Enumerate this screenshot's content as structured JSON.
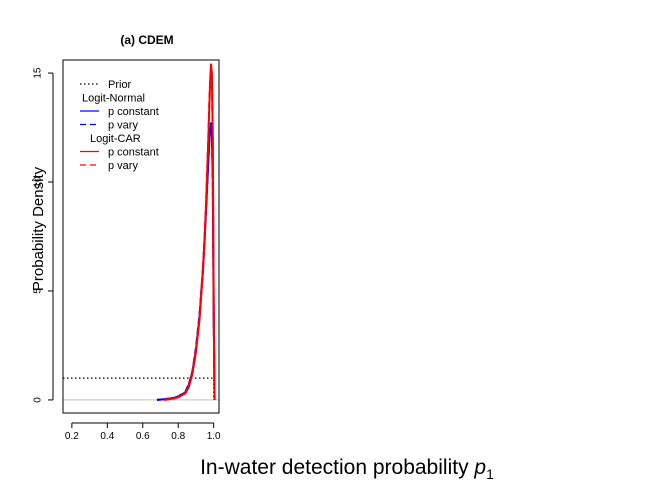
{
  "chart_data": {
    "type": "line",
    "title": "(a) CDEM",
    "xlabel_main": "In-water detection probability ",
    "xlabel_var": "p",
    "xlabel_sub": "1",
    "ylabel": "Probability Density",
    "xlim": [
      0.15,
      1.03
    ],
    "ylim": [
      -0.6,
      15.6
    ],
    "xticks": [
      0.2,
      0.4,
      0.6,
      0.8,
      1.0
    ],
    "xtick_labels": [
      "0.2",
      "0.4",
      "0.6",
      "0.8",
      "1.0"
    ],
    "yticks": [
      0,
      5,
      10,
      15
    ],
    "ytick_labels": [
      "0",
      "5",
      "10",
      "15"
    ],
    "grid": false,
    "legend_position": "top-left",
    "legend": [
      {
        "kind": "entry",
        "label": "Prior",
        "color": "#000000",
        "dash": "dotted"
      },
      {
        "kind": "header",
        "label": "Logit-Normal"
      },
      {
        "kind": "entry",
        "label": "p constant",
        "color": "#0000ff",
        "dash": "solid"
      },
      {
        "kind": "entry",
        "label": "p vary",
        "color": "#0000ff",
        "dash": "dashed"
      },
      {
        "kind": "header",
        "label": "Logit-CAR"
      },
      {
        "kind": "entry",
        "label": "p constant",
        "color": "#ff0000",
        "dash": "solid"
      },
      {
        "kind": "entry",
        "label": "p vary",
        "color": "#ff0000",
        "dash": "dashed"
      }
    ],
    "series": [
      {
        "name": "Prior",
        "color": "#000000",
        "dash": "dotted",
        "width": 1.2,
        "x": [
          0.15,
          1.0,
          1.0
        ],
        "y": [
          1.0,
          1.0,
          0.0
        ]
      },
      {
        "name": "Logit-Normal p constant",
        "color": "#0000ff",
        "dash": "solid",
        "width": 2,
        "x": [
          0.68,
          0.72,
          0.76,
          0.8,
          0.84,
          0.86,
          0.88,
          0.9,
          0.92,
          0.94,
          0.95,
          0.96,
          0.97,
          0.975,
          0.98,
          0.985,
          0.99,
          0.995,
          1.0,
          1.005
        ],
        "y": [
          0,
          0.03,
          0.07,
          0.15,
          0.35,
          0.7,
          1.3,
          2.3,
          3.8,
          6.0,
          7.5,
          9.2,
          11.0,
          11.8,
          12.4,
          12.6,
          12.3,
          10.0,
          4.0,
          0
        ]
      },
      {
        "name": "Logit-Normal p vary",
        "color": "#0000ff",
        "dash": "dashed",
        "width": 2,
        "x": [
          0.68,
          0.72,
          0.76,
          0.8,
          0.84,
          0.86,
          0.88,
          0.9,
          0.92,
          0.94,
          0.95,
          0.96,
          0.97,
          0.975,
          0.98,
          0.985,
          0.99,
          0.995,
          1.0,
          1.005
        ],
        "y": [
          0,
          0.03,
          0.07,
          0.16,
          0.36,
          0.72,
          1.3,
          2.4,
          3.9,
          6.1,
          7.6,
          9.3,
          11.1,
          11.9,
          12.5,
          12.7,
          12.3,
          10.0,
          4.0,
          0
        ]
      },
      {
        "name": "Logit-CAR p constant",
        "color": "#ff0000",
        "dash": "solid",
        "width": 2,
        "x": [
          0.72,
          0.76,
          0.8,
          0.84,
          0.86,
          0.88,
          0.9,
          0.92,
          0.94,
          0.95,
          0.96,
          0.97,
          0.975,
          0.98,
          0.985,
          0.99,
          0.995,
          1.0,
          1.005
        ],
        "y": [
          0,
          0.05,
          0.12,
          0.3,
          0.6,
          1.2,
          2.2,
          3.7,
          6.0,
          7.6,
          9.6,
          12.0,
          13.4,
          14.6,
          15.4,
          15.0,
          12.0,
          4.5,
          0
        ]
      },
      {
        "name": "Logit-CAR p vary",
        "color": "#ff0000",
        "dash": "dashed",
        "width": 2,
        "x": [
          0.72,
          0.76,
          0.8,
          0.84,
          0.86,
          0.88,
          0.9,
          0.92,
          0.94,
          0.95,
          0.96,
          0.97,
          0.975,
          0.98,
          0.985,
          0.99,
          0.995,
          1.0,
          1.005
        ],
        "y": [
          0,
          0.05,
          0.12,
          0.31,
          0.62,
          1.22,
          2.25,
          3.75,
          6.1,
          7.7,
          9.7,
          12.1,
          13.5,
          14.7,
          15.3,
          14.8,
          11.8,
          4.4,
          0
        ]
      }
    ]
  }
}
